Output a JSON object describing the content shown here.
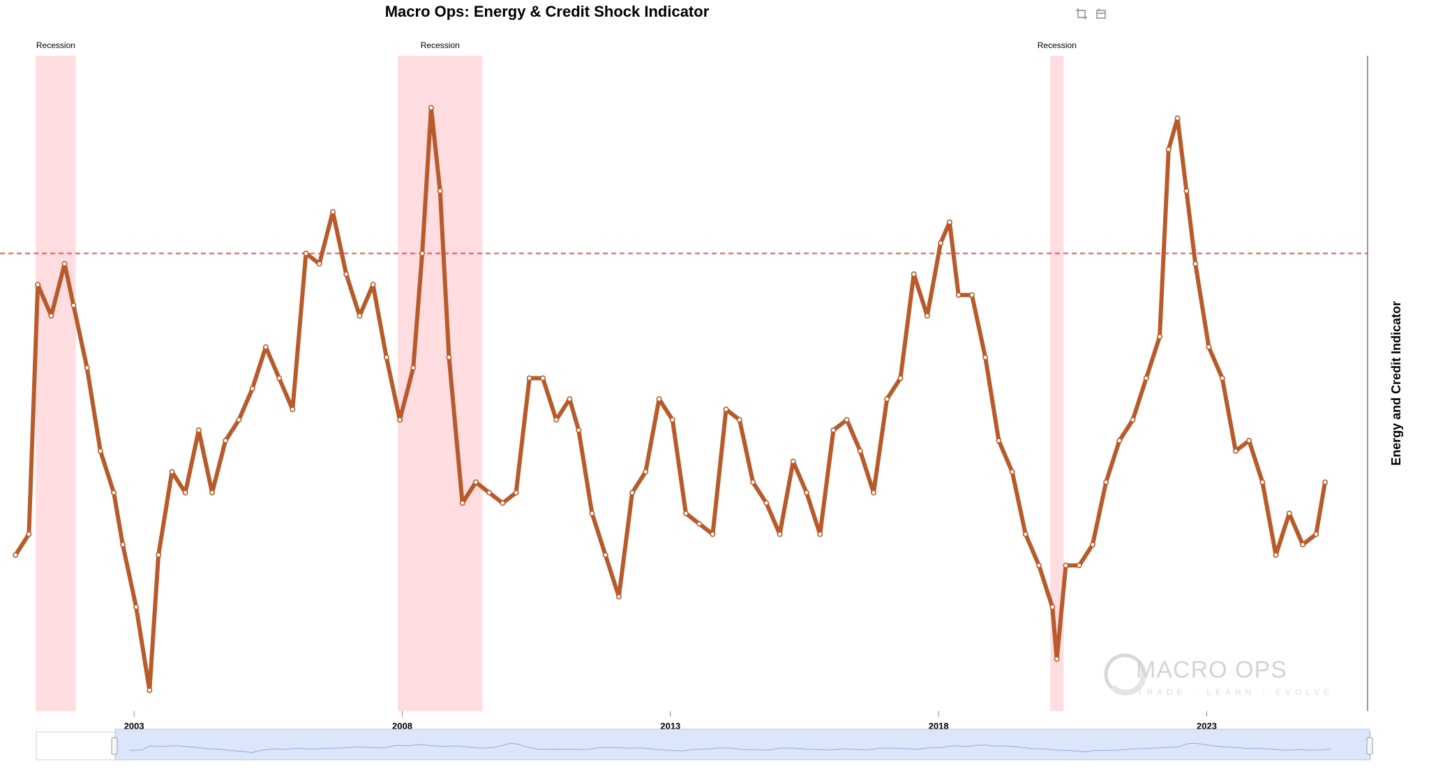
{
  "toolbar": {
    "zoom_icon": "zoom-select-icon",
    "reset_icon": "zoom-reset-icon"
  },
  "colors": {
    "series": "#b85a2a",
    "recession": "#ffdde1",
    "threshold": "#e8534f",
    "navigator": "#dbe6fb"
  },
  "watermark": {
    "brand": "MACRO OPS",
    "tagline": "TRADE - LEARN - EVOLVE"
  },
  "chart_data": {
    "type": "line",
    "title": "Macro Ops: Energy & Credit Shock Indicator",
    "ylabel": "Energy and Credit Indicator",
    "xlabel": "",
    "x_range": [
      "2000-07-01",
      "2025-12-31"
    ],
    "y_range": [
      -1.3,
      1.85
    ],
    "x_ticks": [
      "2003",
      "2008",
      "2013",
      "2018",
      "2023"
    ],
    "threshold": 0.9,
    "recessions": [
      {
        "label": "Recession",
        "start": "2001-03-01",
        "end": "2001-11-30"
      },
      {
        "label": "Recession",
        "start": "2007-12-01",
        "end": "2009-06-30"
      },
      {
        "label": "Recession",
        "start": "2020-02-01",
        "end": "2020-04-30"
      }
    ],
    "series": [
      {
        "x": [
          "2000-10",
          "2001-01",
          "2001-03",
          "2001-06",
          "2001-09",
          "2001-11",
          "2002-02",
          "2002-05",
          "2002-08",
          "2002-10",
          "2003-01",
          "2003-04",
          "2003-06",
          "2003-09",
          "2003-12",
          "2004-03",
          "2004-06",
          "2004-09",
          "2004-12",
          "2005-03",
          "2005-06",
          "2005-09",
          "2005-12",
          "2006-03",
          "2006-06",
          "2006-09",
          "2006-12",
          "2007-03",
          "2007-06",
          "2007-09",
          "2007-12",
          "2008-03",
          "2008-05",
          "2008-07",
          "2008-09",
          "2008-11",
          "2009-02",
          "2009-05",
          "2009-08",
          "2009-11",
          "2010-02",
          "2010-05",
          "2010-08",
          "2010-11",
          "2011-02",
          "2011-04",
          "2011-07",
          "2011-10",
          "2012-01",
          "2012-04",
          "2012-07",
          "2012-10",
          "2013-01",
          "2013-04",
          "2013-07",
          "2013-10",
          "2014-01",
          "2014-04",
          "2014-07",
          "2014-10",
          "2015-01",
          "2015-04",
          "2015-07",
          "2015-10",
          "2016-01",
          "2016-04",
          "2016-07",
          "2016-10",
          "2017-01",
          "2017-04",
          "2017-07",
          "2017-10",
          "2018-01",
          "2018-03",
          "2018-05",
          "2018-08",
          "2018-11",
          "2019-02",
          "2019-05",
          "2019-08",
          "2019-11",
          "2020-02",
          "2020-03",
          "2020-05",
          "2020-08",
          "2020-11",
          "2021-02",
          "2021-05",
          "2021-08",
          "2021-11",
          "2022-02",
          "2022-04",
          "2022-06",
          "2022-08",
          "2022-10",
          "2023-01",
          "2023-04",
          "2023-07",
          "2023-10",
          "2024-01",
          "2024-04",
          "2024-07",
          "2024-10",
          "2025-01",
          "2025-03"
        ],
        "values": [
          -0.55,
          -0.45,
          0.75,
          0.6,
          0.85,
          0.65,
          0.35,
          -0.05,
          -0.25,
          -0.5,
          -0.8,
          -1.2,
          -0.55,
          -0.15,
          -0.25,
          0.05,
          -0.25,
          0.0,
          0.1,
          0.25,
          0.45,
          0.3,
          0.15,
          0.9,
          0.85,
          1.1,
          0.8,
          0.6,
          0.75,
          0.4,
          0.1,
          0.35,
          0.9,
          1.6,
          1.2,
          0.4,
          -0.3,
          -0.2,
          -0.25,
          -0.3,
          -0.25,
          0.3,
          0.3,
          0.1,
          0.2,
          0.05,
          -0.35,
          -0.55,
          -0.75,
          -0.25,
          -0.15,
          0.2,
          0.1,
          -0.35,
          -0.4,
          -0.45,
          0.15,
          0.1,
          -0.2,
          -0.3,
          -0.45,
          -0.1,
          -0.25,
          -0.45,
          0.05,
          0.1,
          -0.05,
          -0.25,
          0.2,
          0.3,
          0.8,
          0.6,
          0.95,
          1.05,
          0.7,
          0.7,
          0.4,
          0.0,
          -0.15,
          -0.45,
          -0.6,
          -0.8,
          -1.05,
          -0.6,
          -0.6,
          -0.5,
          -0.2,
          0.0,
          0.1,
          0.3,
          0.5,
          1.4,
          1.55,
          1.2,
          0.85,
          0.45,
          0.3,
          -0.05,
          0.0,
          -0.2,
          -0.55,
          -0.35,
          -0.5,
          -0.45,
          -0.2
        ]
      }
    ]
  }
}
